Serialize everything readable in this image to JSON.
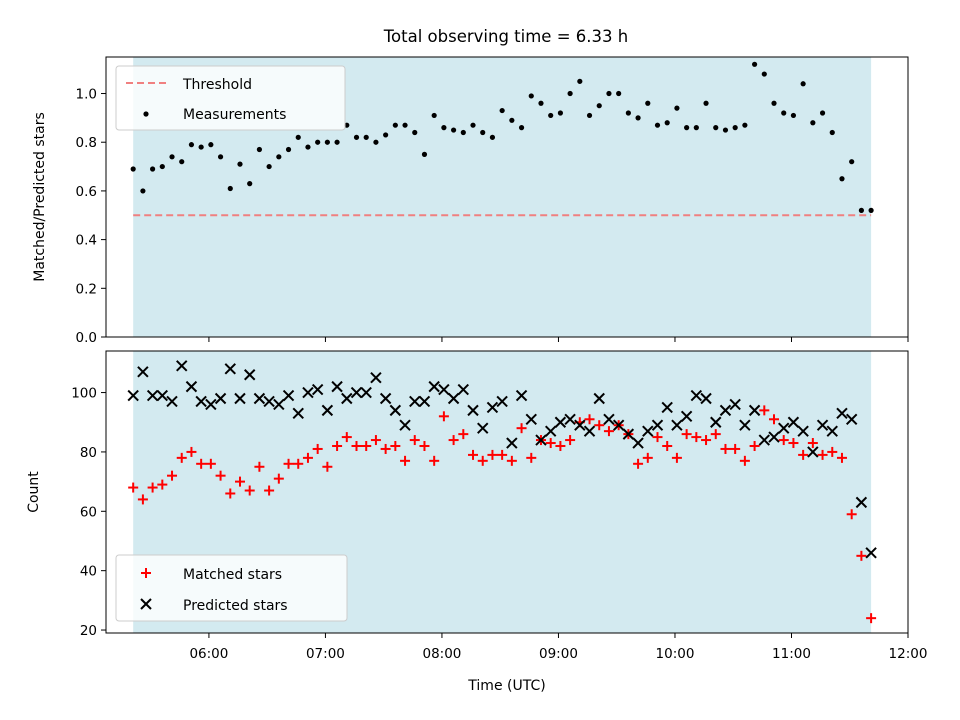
{
  "title": "Total observing time = 6.33 h",
  "xlabel": "Time (UTC)",
  "xticks": [
    "06:00",
    "07:00",
    "08:00",
    "09:00",
    "10:00",
    "11:00",
    "12:00"
  ],
  "colors": {
    "shade": "#d3eaf0",
    "threshold": "#f08080",
    "measurements": "#000000",
    "matched": "#ff0000",
    "predicted": "#000000"
  },
  "chart_data": [
    {
      "type": "scatter",
      "ylabel": "Matched/Predicted stars",
      "ylim": [
        0,
        1.15
      ],
      "yticks": [
        "0.0",
        "0.2",
        "0.4",
        "0.6",
        "0.8",
        "1.0"
      ],
      "observing_window": [
        "05:21",
        "11:41"
      ],
      "threshold": 0.5,
      "legend": {
        "placement": "top-left",
        "threshold_label": "Threshold",
        "measurements_label": "Measurements"
      },
      "series": [
        {
          "name": "Measurements",
          "x": [
            "05:21",
            "05:26",
            "05:31",
            "05:36",
            "05:41",
            "05:46",
            "05:51",
            "05:56",
            "06:01",
            "06:06",
            "06:11",
            "06:16",
            "06:21",
            "06:26",
            "06:31",
            "06:36",
            "06:41",
            "06:46",
            "06:51",
            "06:56",
            "07:01",
            "07:06",
            "07:11",
            "07:16",
            "07:21",
            "07:26",
            "07:31",
            "07:36",
            "07:41",
            "07:46",
            "07:51",
            "07:56",
            "08:01",
            "08:06",
            "08:11",
            "08:16",
            "08:21",
            "08:26",
            "08:31",
            "08:36",
            "08:41",
            "08:46",
            "08:51",
            "08:56",
            "09:01",
            "09:06",
            "09:11",
            "09:16",
            "09:21",
            "09:26",
            "09:31",
            "09:36",
            "09:41",
            "09:46",
            "09:51",
            "09:56",
            "10:01",
            "10:06",
            "10:11",
            "10:16",
            "10:21",
            "10:26",
            "10:31",
            "10:36",
            "10:41",
            "10:46",
            "10:51",
            "10:56",
            "11:01",
            "11:06",
            "11:11",
            "11:16",
            "11:21",
            "11:26",
            "11:31",
            "11:36",
            "11:41"
          ],
          "y": [
            0.69,
            0.6,
            0.69,
            0.7,
            0.74,
            0.72,
            0.79,
            0.78,
            0.79,
            0.74,
            0.61,
            0.71,
            0.63,
            0.77,
            0.7,
            0.74,
            0.77,
            0.82,
            0.78,
            0.8,
            0.8,
            0.8,
            0.87,
            0.82,
            0.82,
            0.8,
            0.83,
            0.87,
            0.87,
            0.84,
            0.75,
            0.91,
            0.86,
            0.85,
            0.84,
            0.87,
            0.84,
            0.82,
            0.93,
            0.89,
            0.86,
            0.99,
            0.96,
            0.91,
            0.92,
            1.0,
            1.05,
            0.91,
            0.95,
            1.0,
            1.0,
            0.92,
            0.9,
            0.96,
            0.87,
            0.88,
            0.94,
            0.86,
            0.86,
            0.96,
            0.86,
            0.85,
            0.86,
            0.87,
            1.12,
            1.08,
            0.96,
            0.92,
            0.91,
            1.04,
            0.88,
            0.92,
            0.84,
            0.65,
            0.72,
            0.52,
            0.52
          ]
        }
      ]
    },
    {
      "type": "scatter",
      "ylabel": "Count",
      "ylim": [
        19,
        114
      ],
      "yticks": [
        "20",
        "40",
        "60",
        "80",
        "100"
      ],
      "observing_window": [
        "05:21",
        "11:41"
      ],
      "legend": {
        "placement": "bottom-left"
      },
      "series": [
        {
          "name": "Matched stars",
          "x": [
            "05:21",
            "05:26",
            "05:31",
            "05:36",
            "05:41",
            "05:46",
            "05:51",
            "05:56",
            "06:01",
            "06:06",
            "06:11",
            "06:16",
            "06:21",
            "06:26",
            "06:31",
            "06:36",
            "06:41",
            "06:46",
            "06:51",
            "06:56",
            "07:01",
            "07:06",
            "07:11",
            "07:16",
            "07:21",
            "07:26",
            "07:31",
            "07:36",
            "07:41",
            "07:46",
            "07:51",
            "07:56",
            "08:01",
            "08:06",
            "08:11",
            "08:16",
            "08:21",
            "08:26",
            "08:31",
            "08:36",
            "08:41",
            "08:46",
            "08:51",
            "08:56",
            "09:01",
            "09:06",
            "09:11",
            "09:16",
            "09:21",
            "09:26",
            "09:31",
            "09:36",
            "09:41",
            "09:46",
            "09:51",
            "09:56",
            "10:01",
            "10:06",
            "10:11",
            "10:16",
            "10:21",
            "10:26",
            "10:31",
            "10:36",
            "10:41",
            "10:46",
            "10:51",
            "10:56",
            "11:01",
            "11:06",
            "11:11",
            "11:16",
            "11:21",
            "11:26",
            "11:31",
            "11:36",
            "11:41"
          ],
          "y": [
            68,
            64,
            68,
            69,
            72,
            78,
            80,
            76,
            76,
            72,
            66,
            70,
            67,
            75,
            67,
            71,
            76,
            76,
            78,
            81,
            75,
            82,
            85,
            82,
            82,
            84,
            81,
            82,
            77,
            84,
            82,
            77,
            92,
            84,
            86,
            79,
            77,
            79,
            79,
            77,
            88,
            78,
            84,
            83,
            82,
            84,
            90,
            91,
            89,
            87,
            89,
            86,
            76,
            78,
            85,
            82,
            78,
            86,
            85,
            84,
            86,
            81,
            81,
            77,
            82,
            94,
            91,
            84,
            83,
            79,
            83,
            79,
            80,
            78,
            59,
            45,
            24
          ]
        },
        {
          "name": "Predicted stars",
          "x": [
            "05:21",
            "05:26",
            "05:31",
            "05:36",
            "05:41",
            "05:46",
            "05:51",
            "05:56",
            "06:01",
            "06:06",
            "06:11",
            "06:16",
            "06:21",
            "06:26",
            "06:31",
            "06:36",
            "06:41",
            "06:46",
            "06:51",
            "06:56",
            "07:01",
            "07:06",
            "07:11",
            "07:16",
            "07:21",
            "07:26",
            "07:31",
            "07:36",
            "07:41",
            "07:46",
            "07:51",
            "07:56",
            "08:01",
            "08:06",
            "08:11",
            "08:16",
            "08:21",
            "08:26",
            "08:31",
            "08:36",
            "08:41",
            "08:46",
            "08:51",
            "08:56",
            "09:01",
            "09:06",
            "09:11",
            "09:16",
            "09:21",
            "09:26",
            "09:31",
            "09:36",
            "09:41",
            "09:46",
            "09:51",
            "09:56",
            "10:01",
            "10:06",
            "10:11",
            "10:16",
            "10:21",
            "10:26",
            "10:31",
            "10:36",
            "10:41",
            "10:46",
            "10:51",
            "10:56",
            "11:01",
            "11:06",
            "11:11",
            "11:16",
            "11:21",
            "11:26",
            "11:31",
            "11:36",
            "11:41"
          ],
          "y": [
            99,
            107,
            99,
            99,
            97,
            109,
            102,
            97,
            96,
            98,
            108,
            98,
            106,
            98,
            97,
            96,
            99,
            93,
            100,
            101,
            94,
            102,
            98,
            100,
            100,
            105,
            98,
            94,
            89,
            97,
            97,
            102,
            101,
            98,
            101,
            94,
            88,
            95,
            97,
            83,
            99,
            91,
            84,
            87,
            90,
            91,
            89,
            87,
            98,
            91,
            89,
            86,
            83,
            87,
            89,
            95,
            89,
            92,
            99,
            98,
            90,
            94,
            96,
            89,
            94,
            84,
            85,
            88,
            90,
            87,
            80,
            89,
            87,
            93,
            91,
            63,
            46
          ]
        }
      ]
    }
  ]
}
